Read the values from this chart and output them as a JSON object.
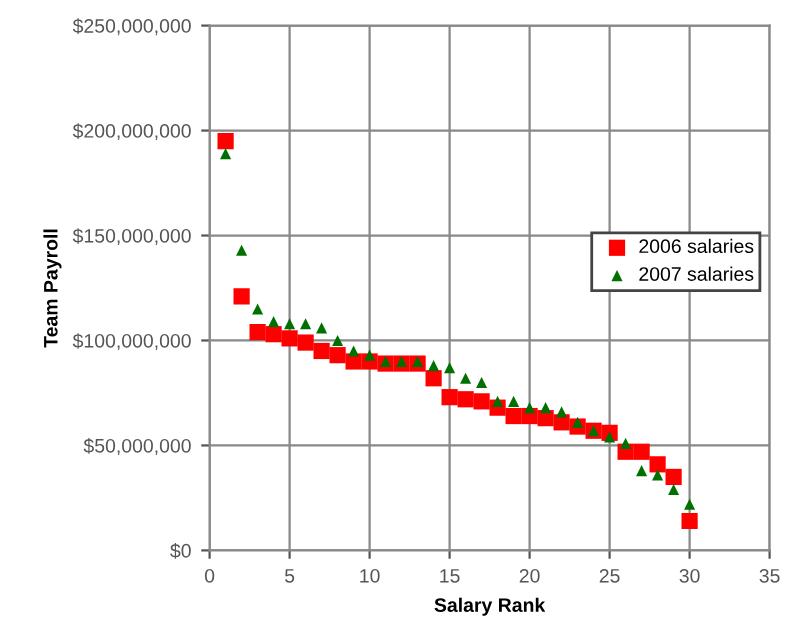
{
  "chart_data": {
    "type": "scatter",
    "xlabel": "Salary Rank",
    "ylabel": "Team Payroll",
    "x": [
      1,
      2,
      3,
      4,
      5,
      6,
      7,
      8,
      9,
      10,
      11,
      12,
      13,
      14,
      15,
      16,
      17,
      18,
      19,
      20,
      21,
      22,
      23,
      24,
      25,
      26,
      27,
      28,
      29,
      30
    ],
    "series": [
      {
        "name": "2006 salaries",
        "color": "#ff0000",
        "marker": "square",
        "values": [
          195000000,
          121000000,
          104000000,
          103000000,
          101000000,
          99000000,
          95000000,
          93000000,
          90000000,
          90000000,
          89000000,
          89000000,
          89000000,
          82000000,
          73000000,
          72000000,
          71000000,
          68000000,
          64000000,
          64000000,
          63000000,
          61000000,
          59000000,
          57000000,
          56000000,
          47000000,
          47000000,
          41000000,
          35000000,
          14000000
        ]
      },
      {
        "name": "2007 salaries",
        "color": "#007000",
        "marker": "triangle",
        "values": [
          189000000,
          143000000,
          115000000,
          109000000,
          108000000,
          108000000,
          106000000,
          100000000,
          95000000,
          93000000,
          90000000,
          90000000,
          90000000,
          88000000,
          87000000,
          82000000,
          80000000,
          71000000,
          71000000,
          68000000,
          68000000,
          66000000,
          61000000,
          57000000,
          54000000,
          51000000,
          38000000,
          36000000,
          29000000,
          22000000
        ]
      }
    ],
    "xlim": [
      0,
      35
    ],
    "xticks": [
      0,
      5,
      10,
      15,
      20,
      25,
      30,
      35
    ],
    "ylim": [
      0,
      250000000
    ],
    "yticks": [
      {
        "value": 0,
        "label": "$0"
      },
      {
        "value": 50000000,
        "label": "$50,000,000"
      },
      {
        "value": 100000000,
        "label": "$100,000,000"
      },
      {
        "value": 150000000,
        "label": "$150,000,000"
      },
      {
        "value": 200000000,
        "label": "$200,000,000"
      },
      {
        "value": 250000000,
        "label": "$250,000,000"
      }
    ],
    "grid": true,
    "legend": "center right"
  }
}
